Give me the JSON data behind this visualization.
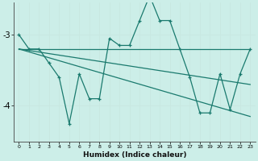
{
  "xlabel": "Humidex (Indice chaleur)",
  "background_color": "#cceee8",
  "grid_color": "#e8f8f8",
  "line_color": "#1a7a6e",
  "xlim": [
    -0.5,
    23.5
  ],
  "ylim": [
    -4.5,
    -2.55
  ],
  "yticks": [
    -4,
    -3
  ],
  "xticks": [
    0,
    1,
    2,
    3,
    4,
    5,
    6,
    7,
    8,
    9,
    10,
    11,
    12,
    13,
    14,
    15,
    16,
    17,
    18,
    19,
    20,
    21,
    22,
    23
  ],
  "series_main": {
    "x": [
      0,
      1,
      2,
      3,
      4,
      5,
      6,
      7,
      8,
      9,
      10,
      11,
      12,
      13,
      14,
      15,
      16,
      17,
      18,
      19,
      20,
      21,
      22,
      23
    ],
    "y": [
      -3.0,
      -3.2,
      -3.2,
      -3.4,
      -3.6,
      -4.25,
      -3.55,
      -3.9,
      -3.9,
      -3.05,
      -3.15,
      -3.15,
      -2.8,
      -2.45,
      -2.8,
      -2.8,
      -3.2,
      -3.6,
      -4.1,
      -4.1,
      -3.55,
      -4.05,
      -3.55,
      -3.2
    ]
  },
  "series_flat": {
    "x": [
      0,
      23
    ],
    "y": [
      -3.2,
      -3.2
    ]
  },
  "series_mid": {
    "x": [
      0,
      23
    ],
    "y": [
      -3.2,
      -3.7
    ]
  },
  "series_steep": {
    "x": [
      0,
      23
    ],
    "y": [
      -3.2,
      -4.15
    ]
  }
}
